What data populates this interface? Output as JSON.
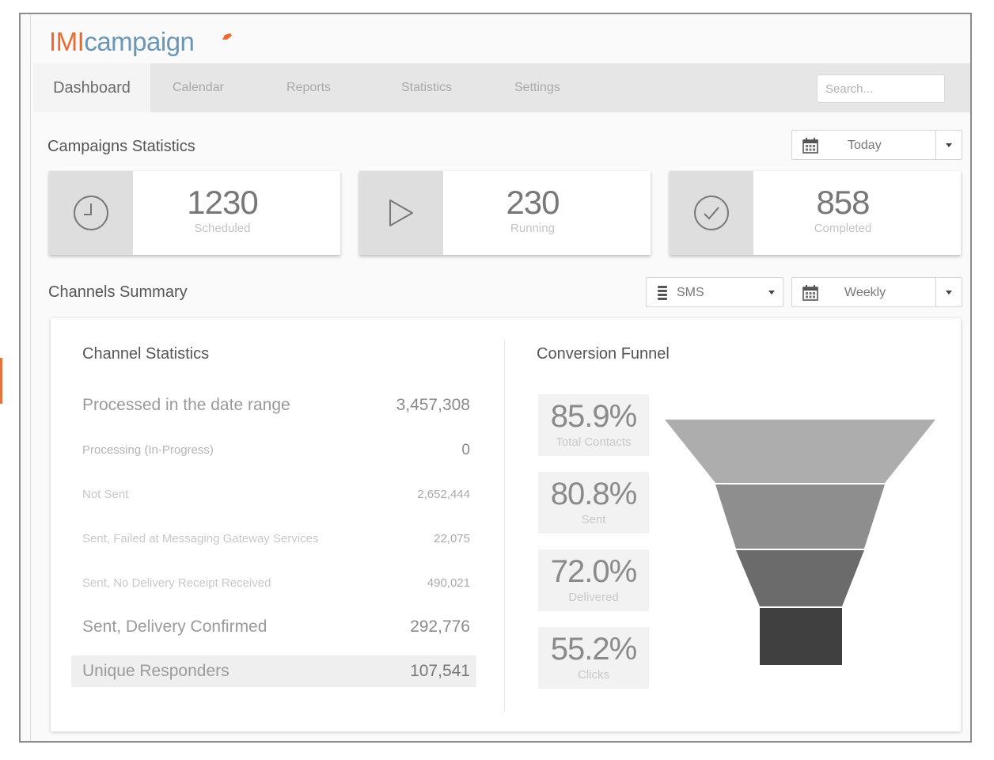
{
  "app": {
    "logo_prefix": "IMI",
    "logo_suffix": "campaign",
    "brand_color": "#ea6a2f",
    "logo_suffix_color": "#6a96b8"
  },
  "nav": {
    "items": [
      {
        "label": "Dashboard",
        "active": true
      },
      {
        "label": "Calendar",
        "active": false
      },
      {
        "label": "Reports",
        "active": false
      },
      {
        "label": "Statistics",
        "active": false
      },
      {
        "label": "Settings",
        "active": false
      }
    ],
    "search_placeholder": "Search..."
  },
  "campaigns": {
    "title": "Campaigns Statistics",
    "date_filter": {
      "value": "Today",
      "icon": "calendar-icon"
    },
    "cards": [
      {
        "value": "1230",
        "label": "Scheduled",
        "icon": "clock-icon"
      },
      {
        "value": "230",
        "label": "Running",
        "icon": "play-icon"
      },
      {
        "value": "858",
        "label": "Completed",
        "icon": "check-circle-icon"
      }
    ]
  },
  "channels": {
    "title": "Channels Summary",
    "channel_filter": {
      "value": "SMS",
      "icon": "sms-icon"
    },
    "period_filter": {
      "value": "Weekly",
      "icon": "calendar-icon"
    },
    "stats_title": "Channel Statistics",
    "rows": [
      {
        "label": "Processed in the date range",
        "value": "3,457,308"
      },
      {
        "label": "Processing (In-Progress)",
        "value": "0"
      },
      {
        "label": "Not Sent",
        "value": "2,652,444"
      },
      {
        "label": "Sent, Failed at Messaging Gateway Services",
        "value": "22,075"
      },
      {
        "label": "Sent, No Delivery Receipt Received",
        "value": "490,021"
      },
      {
        "label": "Sent, Delivery Confirmed",
        "value": "292,776"
      },
      {
        "label": "Unique Responders",
        "value": "107,541"
      }
    ],
    "funnel_title": "Conversion Funnel",
    "funnel": [
      {
        "percent": "85.9%",
        "label": "Total Contacts",
        "color": "#adadad"
      },
      {
        "percent": "80.8%",
        "label": "Sent",
        "color": "#8e8e8e"
      },
      {
        "percent": "72.0%",
        "label": "Delivered",
        "color": "#6b6b6b"
      },
      {
        "percent": "55.2%",
        "label": "Clicks",
        "color": "#404040"
      }
    ]
  }
}
